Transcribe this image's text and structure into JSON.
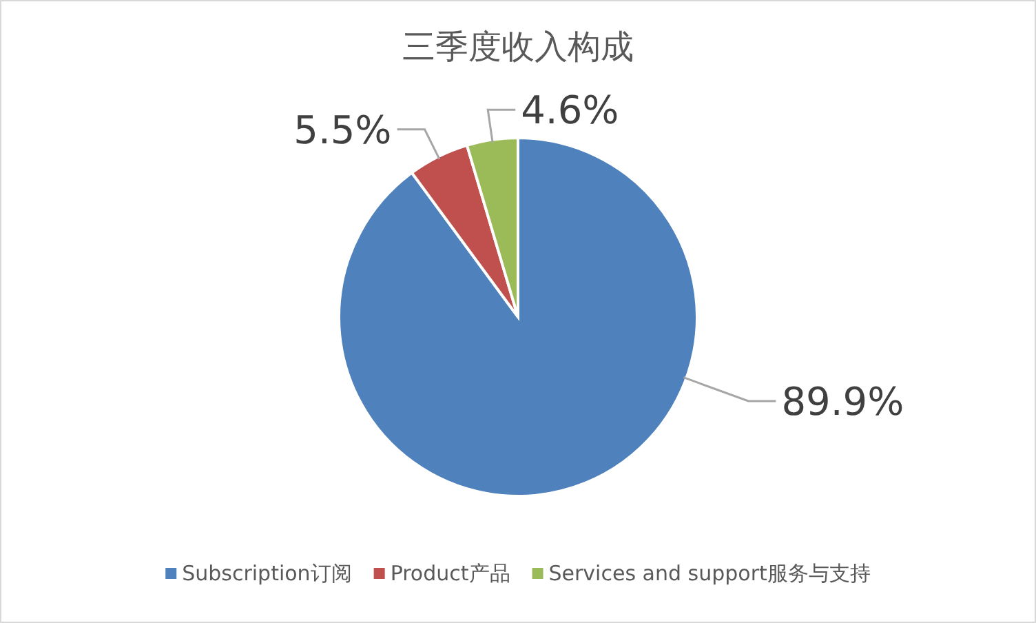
{
  "chart_data": {
    "type": "pie",
    "title": "三季度收入构成",
    "categories": [
      "Subscription订阅",
      "Product产品",
      "Services and support服务与支持"
    ],
    "values": [
      89.9,
      5.5,
      4.6
    ],
    "colors": [
      "#4f81bd",
      "#c0504d",
      "#9bbb59"
    ],
    "value_labels": [
      "89.9%",
      "5.5%",
      "4.6%"
    ],
    "legend": "bottom"
  }
}
